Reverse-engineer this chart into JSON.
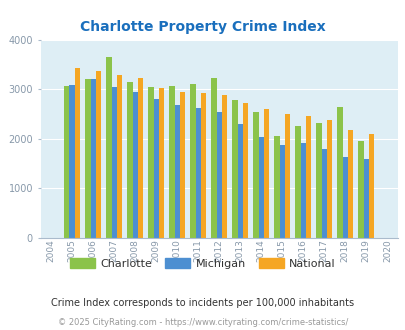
{
  "title": "Charlotte Property Crime Index",
  "title_color": "#1a6fbd",
  "years": [
    2004,
    2005,
    2006,
    2007,
    2008,
    2009,
    2010,
    2011,
    2012,
    2013,
    2014,
    2015,
    2016,
    2017,
    2018,
    2019,
    2020
  ],
  "charlotte": [
    null,
    3060,
    3200,
    3650,
    3150,
    3050,
    3060,
    3110,
    3220,
    2780,
    2540,
    2060,
    2260,
    2310,
    2640,
    1950,
    null
  ],
  "michigan": [
    null,
    3090,
    3210,
    3050,
    2940,
    2810,
    2680,
    2620,
    2530,
    2300,
    2030,
    1880,
    1910,
    1790,
    1630,
    1590,
    null
  ],
  "national": [
    null,
    3430,
    3360,
    3290,
    3220,
    3030,
    2950,
    2930,
    2880,
    2720,
    2590,
    2490,
    2450,
    2370,
    2170,
    2100,
    null
  ],
  "charlotte_color": "#8bc34a",
  "michigan_color": "#4d8fd1",
  "national_color": "#f5a623",
  "bg_color": "#deeef5",
  "bar_width": 0.25,
  "ylim": [
    0,
    4000
  ],
  "yticks": [
    0,
    1000,
    2000,
    3000,
    4000
  ],
  "subtitle": "Crime Index corresponds to incidents per 100,000 inhabitants",
  "footer": "© 2025 CityRating.com - https://www.cityrating.com/crime-statistics/",
  "legend_labels": [
    "Charlotte",
    "Michigan",
    "National"
  ]
}
